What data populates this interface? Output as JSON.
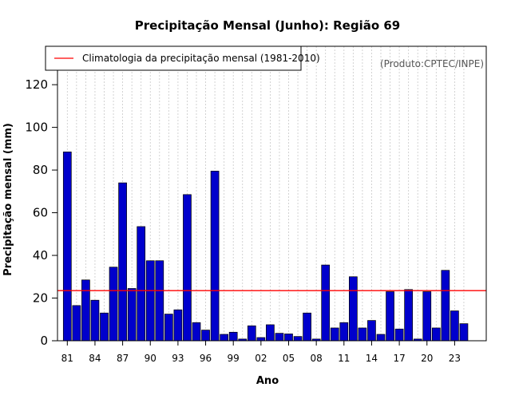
{
  "chart_data": {
    "type": "bar",
    "title": "Precipitação Mensal (Junho): Região 69",
    "xlabel": "Ano",
    "ylabel": "Precipitação mensal (mm)",
    "ylim": [
      0,
      138
    ],
    "yticks": [
      0,
      20,
      40,
      60,
      80,
      100,
      120
    ],
    "grid": "vertical dotted",
    "legend_position": "top-left",
    "legend": [
      {
        "label": "Climatologia da precipitação mensal (1981-2010)",
        "color": "#ff0000"
      }
    ],
    "credit": "(Produto:CPTEC/INPE)",
    "bar_color": "#0000cc",
    "climatology": 23.5,
    "categories": [
      "81",
      "82",
      "83",
      "84",
      "85",
      "86",
      "87",
      "88",
      "89",
      "90",
      "91",
      "92",
      "93",
      "94",
      "95",
      "96",
      "97",
      "98",
      "99",
      "00",
      "01",
      "02",
      "03",
      "04",
      "05",
      "06",
      "07",
      "08",
      "09",
      "10",
      "11",
      "12",
      "13",
      "14",
      "15",
      "16",
      "17",
      "18",
      "19",
      "20",
      "21",
      "22",
      "23",
      "24"
    ],
    "xtick_labels": [
      "81",
      "84",
      "87",
      "90",
      "93",
      "96",
      "99",
      "02",
      "05",
      "08",
      "11",
      "14",
      "17",
      "20",
      "23"
    ],
    "values": [
      88.5,
      16.5,
      28.5,
      19,
      13,
      34.5,
      74,
      24.5,
      53.5,
      37.5,
      37.5,
      12.5,
      14.5,
      68.5,
      8.5,
      5,
      79.5,
      3,
      4,
      0.8,
      7,
      1.5,
      7.5,
      3.5,
      3.2,
      2,
      13,
      0.8,
      35.5,
      6,
      8.5,
      30,
      6,
      9.5,
      3,
      23,
      5.5,
      24,
      0.8,
      23,
      6,
      33,
      14,
      8
    ]
  }
}
